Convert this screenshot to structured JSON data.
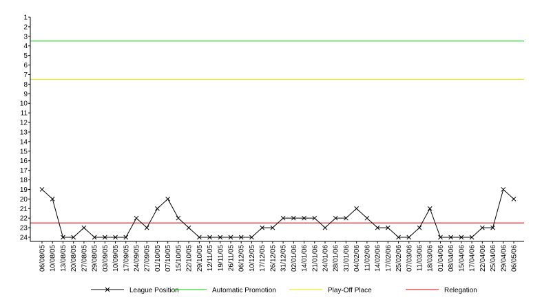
{
  "chart_data": {
    "type": "line",
    "categories": [
      "06/08/05",
      "10/08/05",
      "13/08/05",
      "20/08/05",
      "27/08/05",
      "29/08/05",
      "03/09/05",
      "10/09/05",
      "17/09/05",
      "24/09/05",
      "27/09/05",
      "01/10/05",
      "07/10/05",
      "15/10/05",
      "22/10/05",
      "29/10/05",
      "12/11/05",
      "19/11/05",
      "26/11/05",
      "06/12/05",
      "10/12/05",
      "17/12/05",
      "26/12/05",
      "31/12/05",
      "02/01/06",
      "14/01/06",
      "21/01/06",
      "24/01/06",
      "28/01/06",
      "31/01/06",
      "04/02/06",
      "11/02/06",
      "14/02/06",
      "17/02/06",
      "25/02/06",
      "07/03/06",
      "11/03/06",
      "18/03/06",
      "01/04/06",
      "08/04/06",
      "15/04/06",
      "17/04/06",
      "22/04/06",
      "25/04/06",
      "29/04/06",
      "06/05/06"
    ],
    "y_ticks": [
      "1",
      "2",
      "3",
      "4",
      "5",
      "6",
      "7",
      "8",
      "9",
      "10",
      "11",
      "12",
      "13",
      "14",
      "15",
      "16",
      "17",
      "18",
      "19",
      "20",
      "21",
      "22",
      "23",
      "24"
    ],
    "ylim": [
      1,
      24
    ],
    "y_inverted": true,
    "series": [
      {
        "name": "League Position",
        "color": "#000000",
        "marker": "x",
        "values": [
          19,
          20,
          24,
          24,
          23,
          24,
          24,
          24,
          24,
          22,
          23,
          21,
          20,
          22,
          23,
          24,
          24,
          24,
          24,
          24,
          24,
          23,
          23,
          22,
          22,
          22,
          22,
          23,
          22,
          22,
          21,
          22,
          23,
          23,
          24,
          24,
          23,
          21,
          24,
          24,
          24,
          24,
          23,
          23,
          19,
          20
        ]
      }
    ],
    "reference_lines": [
      {
        "name": "Automatic Promotion",
        "y": 3.5,
        "color": "#00cc00"
      },
      {
        "name": "Play-Off Place",
        "y": 7.5,
        "color": "#e6e600"
      },
      {
        "name": "Relegation",
        "y": 22.5,
        "color": "#dd0000"
      }
    ],
    "legend": {
      "position": "bottom"
    },
    "grid": false
  }
}
